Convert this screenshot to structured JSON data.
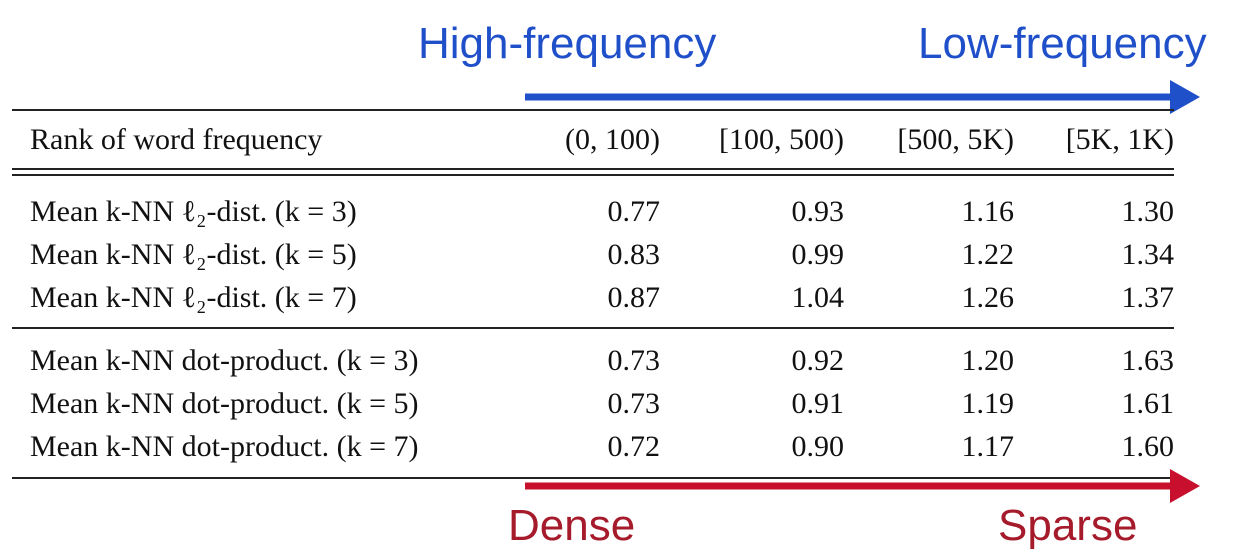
{
  "arrows": {
    "top_left_label": "High-frequency",
    "top_right_label": "Low-frequency",
    "bottom_left_label": "Dense",
    "bottom_right_label": "Sparse",
    "top_color": "#1f4fc9",
    "bottom_color": "#c8102e"
  },
  "table": {
    "header": [
      "Rank of word frequency",
      "(0, 100)",
      "[100, 500)",
      "[500, 5K)",
      "[5K, 1K)"
    ],
    "group1": [
      [
        "Mean k-NN ℓ₂-dist. (k = 3)",
        "0.77",
        "0.93",
        "1.16",
        "1.30"
      ],
      [
        "Mean k-NN ℓ₂-dist. (k = 5)",
        "0.83",
        "0.99",
        "1.22",
        "1.34"
      ],
      [
        "Mean k-NN ℓ₂-dist. (k = 7)",
        "0.87",
        "1.04",
        "1.26",
        "1.37"
      ]
    ],
    "group2": [
      [
        "Mean k-NN dot-product. (k = 3)",
        "0.73",
        "0.92",
        "1.20",
        "1.63"
      ],
      [
        "Mean k-NN dot-product. (k = 5)",
        "0.73",
        "0.91",
        "1.19",
        "1.61"
      ],
      [
        "Mean k-NN dot-product. (k = 7)",
        "0.72",
        "0.90",
        "1.17",
        "1.60"
      ]
    ]
  }
}
